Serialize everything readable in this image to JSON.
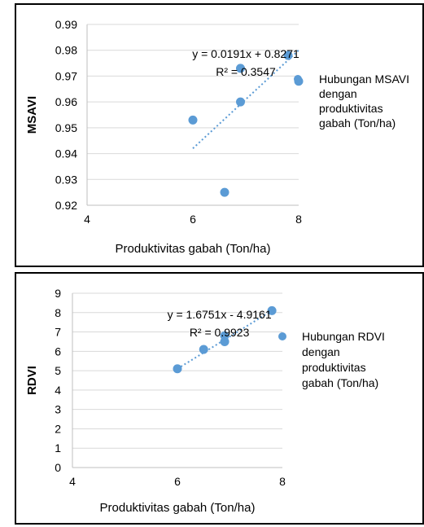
{
  "chart_data": [
    {
      "type": "scatter",
      "xlabel": "Produktivitas gabah (Ton/ha)",
      "ylabel": "MSAVI",
      "xlim": [
        4,
        8
      ],
      "ylim": [
        0.92,
        0.99
      ],
      "xticks": [
        4,
        6,
        8
      ],
      "xtick_labels": [
        "4",
        "6",
        "8"
      ],
      "yticks": [
        0.92,
        0.93,
        0.94,
        0.95,
        0.96,
        0.97,
        0.98,
        0.99
      ],
      "ytick_labels": [
        "0.92",
        "0.93",
        "0.94",
        "0.95",
        "0.96",
        "0.97",
        "0.98",
        "0.99"
      ],
      "grid": "horizontal",
      "legend_position": "right",
      "series": [
        {
          "name": "Hubungan MSAVI dengan produktivitas gabah (Ton/ha)",
          "legend_lines": [
            "Hubungan MSAVI",
            "dengan",
            "produktivitas",
            "gabah (Ton/ha)"
          ],
          "color": "#5b9bd5",
          "x": [
            6.0,
            6.6,
            6.9,
            6.9,
            7.8,
            8.0
          ],
          "y": [
            0.953,
            0.925,
            0.973,
            0.96,
            0.978,
            0.968
          ]
        }
      ],
      "trendline": {
        "x_range": [
          6.0,
          8.0
        ],
        "y_range": [
          0.942,
          0.98
        ],
        "color": "#5b9bd5",
        "style": "dotted",
        "equation": "y = 0.0191x + 0.8271",
        "r_squared": "R² = 0.3547",
        "label_at": [
          7.0,
          0.977
        ]
      }
    },
    {
      "type": "scatter",
      "xlabel": "Produktivitas gabah (Ton/ha)",
      "ylabel": "RDVI",
      "xlim": [
        4,
        8
      ],
      "ylim": [
        0,
        9
      ],
      "xticks": [
        4,
        6,
        8
      ],
      "xtick_labels": [
        "4",
        "6",
        "8"
      ],
      "yticks": [
        0,
        1,
        2,
        3,
        4,
        5,
        6,
        7,
        8,
        9
      ],
      "ytick_labels": [
        "0",
        "1",
        "2",
        "3",
        "4",
        "5",
        "6",
        "7",
        "8",
        "9"
      ],
      "grid": "horizontal",
      "legend_position": "right",
      "series": [
        {
          "name": "Hubungan RDVI dengan produktivitas gabah (Ton/ha)",
          "legend_lines": [
            "Hubungan RDVI",
            "dengan",
            "produktivitas",
            "gabah (Ton/ha)"
          ],
          "color": "#5b9bd5",
          "x": [
            6.0,
            6.5,
            6.9,
            6.9,
            7.8
          ],
          "y": [
            5.1,
            6.1,
            6.5,
            6.8,
            8.1
          ]
        }
      ],
      "trendline": {
        "x_range": [
          6.0,
          7.8
        ],
        "y_range": [
          5.1,
          8.1
        ],
        "color": "#5b9bd5",
        "style": "dotted",
        "equation": "y = 1.6751x - 4.9161",
        "r_squared": "R² = 0.9923",
        "label_at": [
          6.8,
          7.7
        ]
      }
    }
  ]
}
